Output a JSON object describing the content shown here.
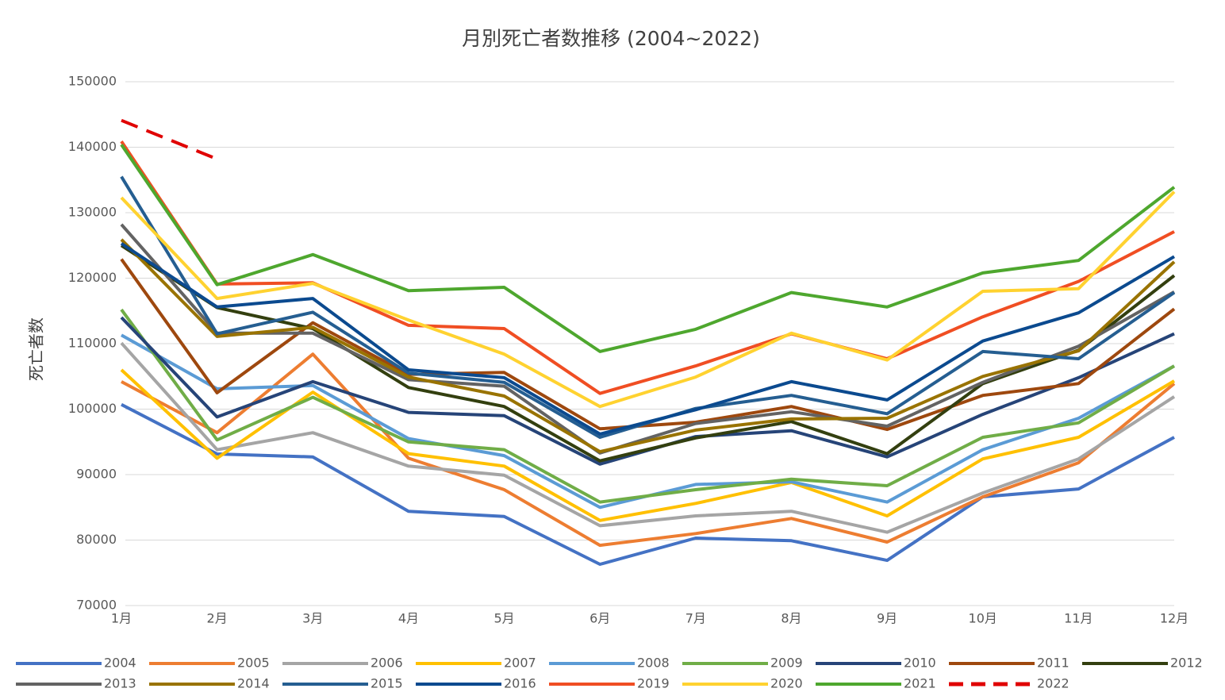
{
  "chart_data": {
    "type": "line",
    "title": "月別死亡者数推移 (2004~2022)",
    "y_label": "死亡者数",
    "categories": [
      "1月",
      "2月",
      "3月",
      "4月",
      "5月",
      "6月",
      "7月",
      "8月",
      "9月",
      "10月",
      "11月",
      "12月"
    ],
    "ylim": [
      70000,
      150000
    ],
    "yticks": [
      70000,
      80000,
      90000,
      100000,
      110000,
      120000,
      130000,
      140000,
      150000
    ],
    "grid": true,
    "legend": "bottom",
    "series": [
      {
        "name": "2004",
        "color": "#4472c4",
        "values": [
          100700,
          93150,
          92700,
          84400,
          83600,
          76300,
          80300,
          79900,
          76900,
          86600,
          87800,
          95700
        ]
      },
      {
        "name": "2005",
        "color": "#ed7d31",
        "values": [
          104200,
          96400,
          108400,
          92500,
          87700,
          79200,
          81000,
          83300,
          79700,
          86600,
          91800,
          103900
        ]
      },
      {
        "name": "2006",
        "color": "#a5a5a5",
        "values": [
          110100,
          93800,
          96400,
          91300,
          89900,
          82200,
          83700,
          84400,
          81200,
          87200,
          92400,
          101900
        ]
      },
      {
        "name": "2007",
        "color": "#ffc000",
        "values": [
          106000,
          92500,
          102600,
          93200,
          91300,
          83000,
          85600,
          88800,
          83700,
          92400,
          95700,
          104300
        ]
      },
      {
        "name": "2008",
        "color": "#5b9bd5",
        "values": [
          111300,
          103100,
          103600,
          95500,
          92900,
          85000,
          88500,
          88900,
          85800,
          93800,
          98600,
          106600
        ]
      },
      {
        "name": "2009",
        "color": "#70ad47",
        "values": [
          115200,
          95300,
          101800,
          95000,
          93800,
          85800,
          87700,
          89300,
          88300,
          95700,
          97900,
          106600
        ]
      },
      {
        "name": "2010",
        "color": "#264478",
        "values": [
          114000,
          98800,
          104200,
          99500,
          99000,
          91600,
          95800,
          96700,
          92700,
          99200,
          104800,
          111500
        ]
      },
      {
        "name": "2011",
        "color": "#9e480e",
        "values": [
          122900,
          102500,
          113200,
          105300,
          105600,
          97000,
          98000,
          100400,
          96900,
          102100,
          103900,
          115300
        ]
      },
      {
        "name": "2012",
        "color": "#333f0f",
        "values": [
          125000,
          115500,
          112300,
          103300,
          100400,
          92100,
          95600,
          98100,
          93200,
          103900,
          109000,
          120400
        ]
      },
      {
        "name": "2013",
        "color": "#636363",
        "values": [
          128200,
          111600,
          111600,
          104500,
          103500,
          93300,
          97800,
          99600,
          97400,
          104100,
          109600,
          117900
        ]
      },
      {
        "name": "2014",
        "color": "#997300",
        "values": [
          125900,
          111100,
          112500,
          104900,
          102000,
          93500,
          96800,
          98500,
          98600,
          105000,
          108900,
          122500
        ]
      },
      {
        "name": "2015",
        "color": "#255e91",
        "values": [
          135500,
          111500,
          114800,
          105500,
          104100,
          95700,
          100100,
          102100,
          99300,
          108800,
          107700,
          117800
        ]
      },
      {
        "name": "2016",
        "color": "#0b4a8f",
        "values": [
          125300,
          115600,
          116900,
          106000,
          104800,
          96200,
          99900,
          104200,
          101400,
          110400,
          114700,
          123300
        ]
      },
      {
        "name": "2019",
        "color": "#f04e23",
        "values": [
          140900,
          119100,
          119300,
          112800,
          112300,
          102400,
          106600,
          111500,
          107700,
          114100,
          119500,
          127100
        ]
      },
      {
        "name": "2020",
        "color": "#ffd230",
        "values": [
          132300,
          116900,
          119200,
          113600,
          108400,
          100400,
          104900,
          111600,
          107500,
          118000,
          118400,
          133200
        ]
      },
      {
        "name": "2021",
        "color": "#4ea72e",
        "values": [
          140400,
          119000,
          123600,
          118100,
          118600,
          108800,
          112200,
          117800,
          115600,
          120800,
          122700,
          133900
        ]
      },
      {
        "name": "2022",
        "color": "#e00000",
        "dashed": true,
        "values": [
          144100,
          138200,
          null,
          null,
          null,
          null,
          null,
          null,
          null,
          null,
          null,
          null
        ]
      }
    ]
  }
}
